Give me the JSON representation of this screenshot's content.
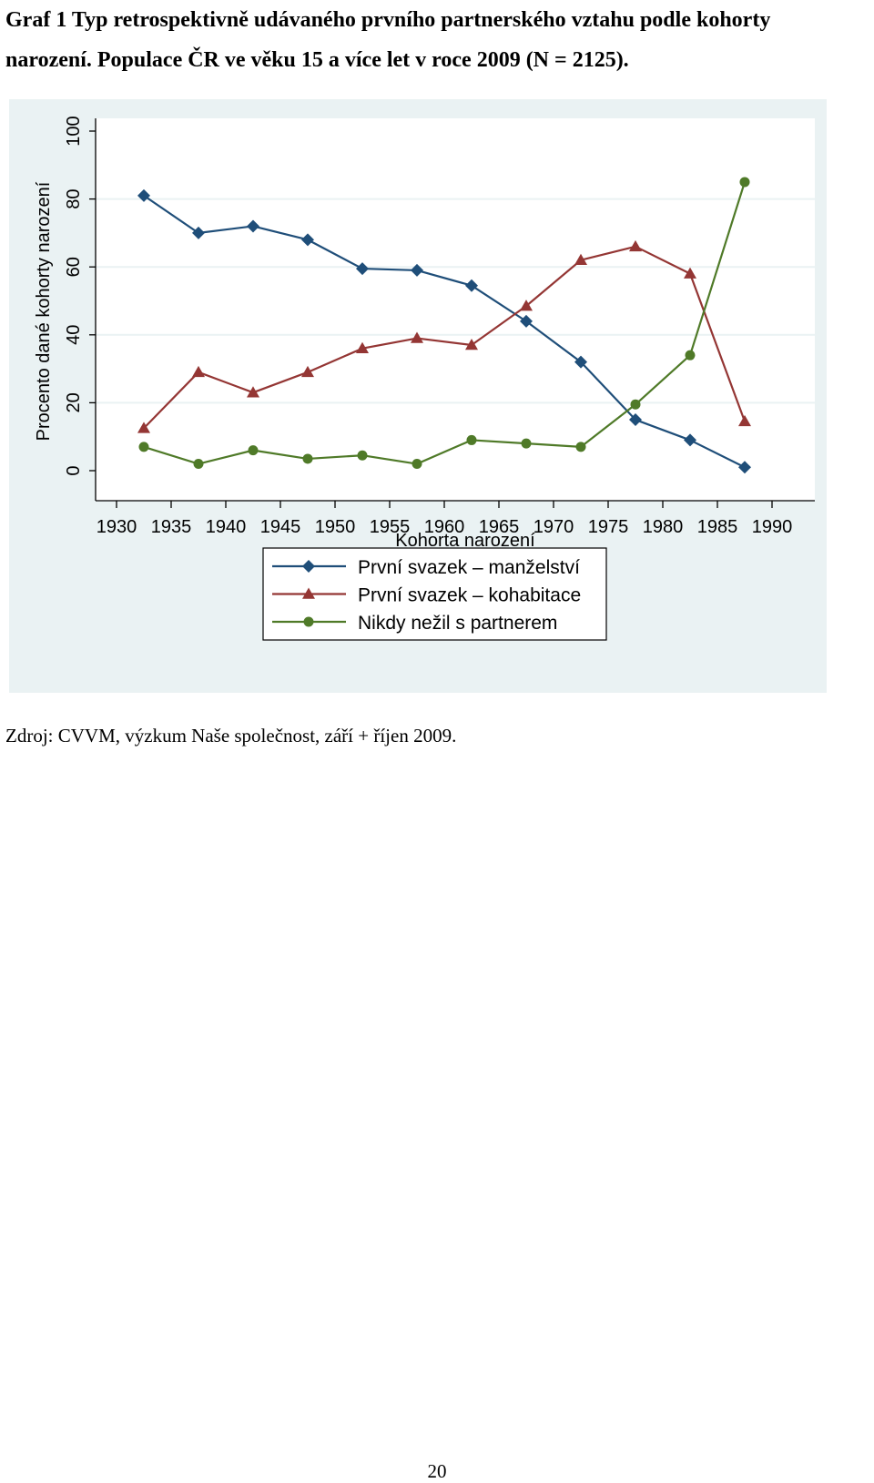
{
  "caption": {
    "line1": "Graf 1 Typ retrospektivně udávaného prvního partnerského vztahu podle kohorty",
    "line2": "narození. Populace ČR ve věku 15 a více let v roce 2009 (N = 2125)."
  },
  "chart_data": {
    "type": "line",
    "xlabel": "Kohorta narození",
    "ylabel": "Procento dané kohorty narození",
    "xlim": [
      1930,
      1990
    ],
    "ylim": [
      0,
      100
    ],
    "x_ticks": [
      "1930",
      "1935",
      "1940",
      "1945",
      "1950",
      "1955",
      "1960",
      "1965",
      "1970",
      "1975",
      "1980",
      "1985",
      "1990"
    ],
    "y_ticks": [
      "0",
      "20",
      "40",
      "60",
      "80",
      "100"
    ],
    "grid": true,
    "legend_position": "bottom",
    "x": [
      1932.5,
      1937.5,
      1942.5,
      1947.5,
      1952.5,
      1957.5,
      1962.5,
      1967.5,
      1972.5,
      1977.5,
      1982.5,
      1987.5
    ],
    "series": [
      {
        "name": "První svazek – manželství",
        "color": "#1f4e79",
        "marker": "diamond",
        "values": [
          81,
          70,
          72,
          68,
          59.5,
          59,
          54.5,
          44,
          32,
          15,
          9,
          1
        ]
      },
      {
        "name": "První svazek – kohabitace",
        "color": "#943634",
        "marker": "triangle",
        "values": [
          12.5,
          29,
          23,
          29,
          36,
          39,
          37,
          48.5,
          62,
          66,
          58,
          14.5
        ]
      },
      {
        "name": "Nikdy nežil s partnerem",
        "color": "#4f7a28",
        "marker": "circle",
        "values": [
          7,
          2,
          6,
          3.5,
          4.5,
          2,
          9,
          8,
          7,
          19.5,
          34,
          85
        ]
      }
    ]
  },
  "colors": {
    "plot_region": "#eaf2f3",
    "plot_area": "#ffffff",
    "grid": "#eaf2f3"
  },
  "source": "Zdroj: CVVM, výzkum Naše společnost, září + říjen 2009.",
  "page_number": "20"
}
